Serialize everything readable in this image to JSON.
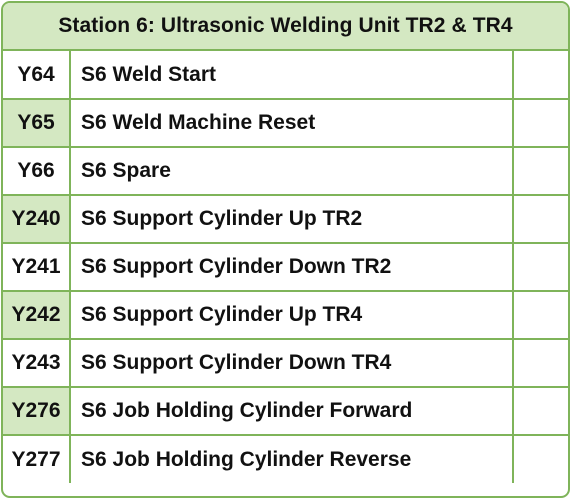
{
  "title": "Station 6: Ultrasonic Welding Unit TR2 & TR4",
  "rows": [
    {
      "address": "Y64",
      "description": "S6 Weld Start",
      "shaded": false
    },
    {
      "address": "Y65",
      "description": "S6 Weld Machine Reset",
      "shaded": true
    },
    {
      "address": "Y66",
      "description": "S6 Spare",
      "shaded": false
    },
    {
      "address": "Y240",
      "description": "S6 Support Cylinder Up TR2",
      "shaded": true
    },
    {
      "address": "Y241",
      "description": "S6 Support Cylinder Down TR2",
      "shaded": false
    },
    {
      "address": "Y242",
      "description": "S6 Support Cylinder Up TR4",
      "shaded": true
    },
    {
      "address": "Y243",
      "description": "S6 Support Cylinder Down TR4",
      "shaded": false
    },
    {
      "address": "Y276",
      "description": "S6 Job Holding Cylinder Forward",
      "shaded": true
    },
    {
      "address": "Y277",
      "description": "S6 Job Holding Cylinder Reverse",
      "shaded": false
    }
  ],
  "colors": {
    "border": "#7fb45a",
    "shade": "#d4e8c2"
  }
}
